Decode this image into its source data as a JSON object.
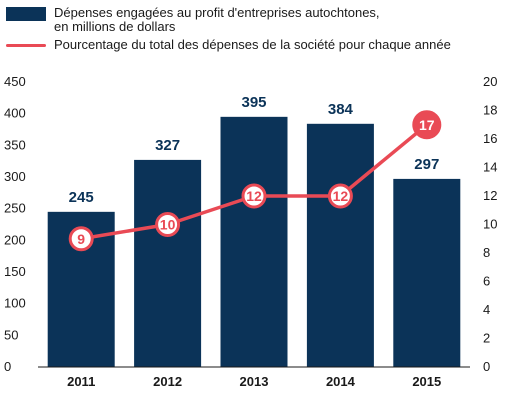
{
  "chart_data": {
    "type": "bar",
    "categories": [
      "2011",
      "2012",
      "2013",
      "2014",
      "2015"
    ],
    "series": [
      {
        "name": "Dépenses engagées au profit d'entreprises autochtones,\nen millions de dollars",
        "type": "bar",
        "axis": "left",
        "values": [
          245,
          327,
          395,
          384,
          297
        ],
        "color": "#0b3358"
      },
      {
        "name": "Pourcentage du total des dépenses de la société pour chaque année",
        "type": "line",
        "axis": "right",
        "values": [
          9,
          10,
          12,
          12,
          17
        ],
        "color": "#e94a55"
      }
    ],
    "y_left": {
      "ylim": [
        0,
        450
      ],
      "ticks": [
        0,
        50,
        100,
        150,
        200,
        250,
        300,
        350,
        400,
        450
      ]
    },
    "y_right": {
      "ylim": [
        0,
        20
      ],
      "ticks": [
        0,
        2,
        4,
        6,
        8,
        10,
        12,
        14,
        16,
        18,
        20
      ]
    },
    "legend_position": "top-left",
    "grid": false
  }
}
